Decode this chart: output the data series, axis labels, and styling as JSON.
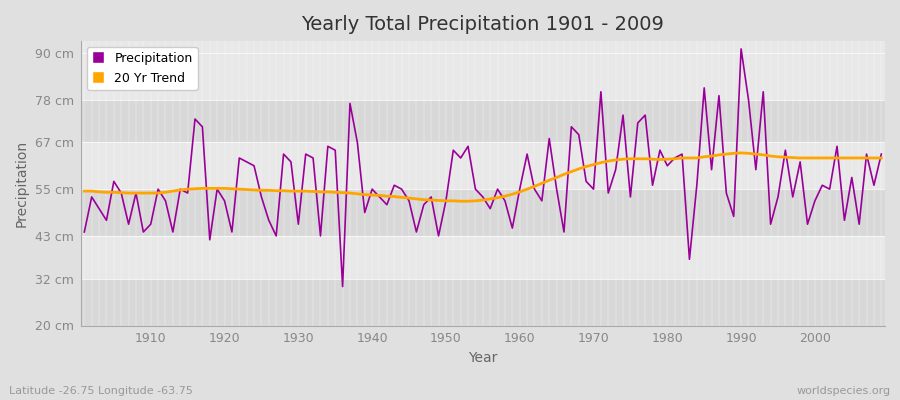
{
  "title": "Yearly Total Precipitation 1901 - 2009",
  "xlabel": "Year",
  "ylabel": "Precipitation",
  "subtitle": "Latitude -26.75 Longitude -63.75",
  "watermark": "worldspecies.org",
  "start_year": 1901,
  "end_year": 2009,
  "ylim": [
    20,
    93
  ],
  "yticks": [
    20,
    32,
    43,
    55,
    67,
    78,
    90
  ],
  "ytick_labels": [
    "20 cm",
    "32 cm",
    "43 cm",
    "55 cm",
    "67 cm",
    "78 cm",
    "90 cm"
  ],
  "xticks": [
    1910,
    1920,
    1930,
    1940,
    1950,
    1960,
    1970,
    1980,
    1990,
    2000
  ],
  "precip_color": "#990099",
  "trend_color": "#ffa500",
  "bg_color": "#e0e0e0",
  "plot_bg_color": "#e8e8e8",
  "plot_bg_color2": "#d8d8d8",
  "grid_color": "#ffffff",
  "precipitation": [
    44,
    53,
    50,
    47,
    57,
    54,
    46,
    54,
    44,
    46,
    55,
    52,
    44,
    55,
    54,
    73,
    71,
    42,
    55,
    52,
    44,
    63,
    62,
    61,
    53,
    47,
    43,
    64,
    62,
    46,
    64,
    63,
    43,
    66,
    65,
    30,
    77,
    67,
    49,
    55,
    53,
    51,
    56,
    55,
    52,
    44,
    51,
    53,
    43,
    52,
    65,
    63,
    66,
    55,
    53,
    50,
    55,
    52,
    45,
    55,
    64,
    55,
    52,
    68,
    55,
    44,
    71,
    69,
    57,
    55,
    80,
    54,
    60,
    74,
    53,
    72,
    74,
    56,
    65,
    61,
    63,
    64,
    37,
    56,
    81,
    60,
    79,
    54,
    48,
    91,
    78,
    60,
    80,
    46,
    53,
    65,
    53,
    62,
    46,
    52,
    56,
    55,
    66,
    47,
    58,
    46,
    64,
    56,
    64
  ],
  "trend": [
    54.5,
    54.5,
    54.3,
    54.2,
    54.2,
    54.1,
    54.0,
    54.0,
    54.0,
    54.0,
    54.0,
    54.2,
    54.5,
    54.8,
    55.0,
    55.1,
    55.2,
    55.2,
    55.2,
    55.2,
    55.1,
    55.0,
    54.9,
    54.8,
    54.7,
    54.7,
    54.6,
    54.6,
    54.5,
    54.5,
    54.5,
    54.4,
    54.3,
    54.3,
    54.2,
    54.1,
    54.0,
    53.8,
    53.6,
    53.5,
    53.4,
    53.2,
    53.1,
    52.9,
    52.7,
    52.5,
    52.3,
    52.2,
    52.1,
    52.0,
    52.0,
    51.9,
    51.9,
    52.0,
    52.2,
    52.5,
    52.8,
    53.2,
    53.7,
    54.3,
    55.0,
    55.7,
    56.5,
    57.3,
    58.0,
    58.8,
    59.5,
    60.2,
    60.8,
    61.3,
    61.8,
    62.2,
    62.5,
    62.7,
    62.8,
    62.8,
    62.8,
    62.7,
    62.6,
    62.7,
    62.8,
    63.0,
    63.0,
    63.0,
    63.3,
    63.5,
    63.8,
    64.0,
    64.2,
    64.3,
    64.2,
    64.0,
    63.8,
    63.5,
    63.3,
    63.2,
    63.1,
    63.0,
    63.0,
    63.0,
    63.0,
    63.0,
    63.0,
    63.0,
    63.0,
    63.0,
    63.0,
    63.0,
    63.0
  ],
  "legend_precip_label": "Precipitation",
  "legend_trend_label": "20 Yr Trend"
}
